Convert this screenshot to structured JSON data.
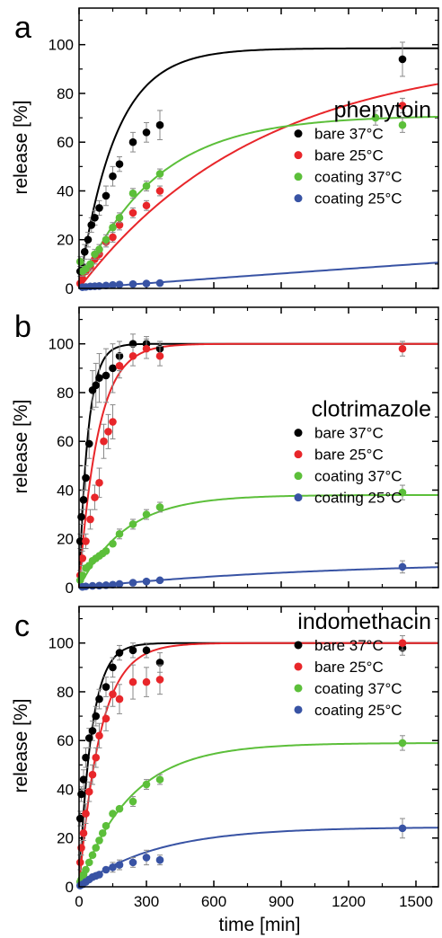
{
  "colors": {
    "bare_37": "#000000",
    "bare_25": "#e8262a",
    "coating_37": "#5cbf3a",
    "coating_25": "#3853a4",
    "errorbar": "#8a8a8a"
  },
  "shared_axes": {
    "xlabel": "time [min]",
    "ylabel": "release [%]",
    "xlim": [
      0,
      1600
    ],
    "ylim": [
      0,
      115
    ],
    "xticks": [
      0,
      300,
      600,
      900,
      1200,
      1500
    ],
    "yticks": [
      0,
      20,
      40,
      60,
      80,
      100
    ]
  },
  "chart_data": [
    {
      "type": "scatter",
      "panel_label": "a",
      "drug": "phenytoin",
      "legend_position": "right-middle",
      "series": [
        {
          "name": "bare 37°C",
          "key": "bare_37",
          "x": [
            5,
            15,
            25,
            40,
            55,
            70,
            90,
            120,
            150,
            180,
            240,
            300,
            360,
            1440
          ],
          "y": [
            7,
            9,
            15,
            20,
            26,
            29,
            33,
            38,
            46,
            51,
            60,
            64,
            67,
            94
          ],
          "err": [
            2,
            2,
            3,
            3,
            3,
            3,
            3,
            4,
            4,
            3,
            4,
            4,
            6,
            7
          ],
          "fit": {
            "plateau": 98.5,
            "k": 0.0062
          }
        },
        {
          "name": "bare 25°C",
          "key": "bare_25",
          "x": [
            5,
            15,
            30,
            50,
            70,
            90,
            120,
            150,
            180,
            240,
            300,
            360,
            1440
          ],
          "y": [
            2,
            4,
            7,
            9,
            12,
            14,
            19,
            21,
            26,
            31,
            34,
            40,
            75
          ],
          "err": [
            1,
            1,
            1,
            2,
            2,
            2,
            2,
            2,
            2,
            2,
            2,
            2,
            3
          ],
          "fit": {
            "plateau": 97.0,
            "k": 0.00125
          }
        },
        {
          "name": "coating 37°C",
          "key": "coating_37",
          "x": [
            5,
            15,
            30,
            50,
            70,
            90,
            120,
            150,
            180,
            240,
            300,
            360,
            1320,
            1440
          ],
          "y": [
            11,
            7,
            8,
            10,
            14,
            16,
            20,
            25,
            29,
            39,
            42,
            47,
            70,
            67
          ],
          "err": [
            2,
            2,
            2,
            2,
            2,
            2,
            2,
            2,
            2,
            2,
            2,
            2,
            3,
            3
          ],
          "fit": {
            "plateau": 71.0,
            "k": 0.003
          }
        },
        {
          "name": "coating 25°C",
          "key": "coating_25",
          "x": [
            15,
            30,
            50,
            70,
            90,
            120,
            150,
            180,
            240,
            300,
            360
          ],
          "y": [
            0.5,
            0.6,
            0.8,
            0.9,
            1.0,
            1.2,
            1.4,
            1.6,
            1.8,
            2.0,
            2.2
          ],
          "err": [
            0.3,
            0.3,
            0.3,
            0.3,
            0.3,
            0.3,
            0.3,
            0.3,
            0.3,
            0.3,
            0.3
          ],
          "fit": {
            "plateau": 100.0,
            "k": 7e-05
          }
        }
      ]
    },
    {
      "type": "scatter",
      "panel_label": "b",
      "drug": "clotrimazole",
      "legend_position": "right-middle",
      "series": [
        {
          "name": "bare 37°C",
          "key": "bare_37",
          "x": [
            5,
            10,
            20,
            30,
            45,
            60,
            75,
            90,
            120,
            150,
            180,
            240,
            300,
            360
          ],
          "y": [
            19,
            29,
            36,
            45,
            59,
            81,
            83,
            86,
            87,
            90,
            95,
            100,
            100,
            98
          ],
          "err": [
            3,
            3,
            4,
            5,
            6,
            8,
            9,
            10,
            11,
            10,
            6,
            4,
            3,
            3
          ],
          "fit": {
            "plateau": 100.0,
            "k": 0.025
          }
        },
        {
          "name": "bare 25°C",
          "key": "bare_25",
          "x": [
            5,
            15,
            30,
            50,
            70,
            90,
            110,
            130,
            150,
            180,
            240,
            300,
            360,
            1440
          ],
          "y": [
            5,
            12,
            19,
            28,
            37,
            43,
            60,
            64,
            68,
            91,
            95,
            98,
            95,
            98
          ],
          "err": [
            2,
            3,
            3,
            4,
            5,
            6,
            7,
            7,
            7,
            5,
            4,
            4,
            4,
            3
          ],
          "fit": {
            "plateau": 100.0,
            "k": 0.0118
          }
        },
        {
          "name": "coating 37°C",
          "key": "coating_37",
          "x": [
            5,
            15,
            30,
            45,
            60,
            75,
            90,
            105,
            120,
            150,
            180,
            240,
            300,
            360,
            1440
          ],
          "y": [
            3,
            5,
            8,
            9,
            11,
            12,
            13,
            14,
            15,
            18,
            22,
            26,
            30,
            33,
            39
          ],
          "err": [
            1,
            1,
            1,
            1,
            1,
            1,
            1,
            1,
            1,
            1,
            2,
            2,
            2,
            2,
            3
          ],
          "fit": {
            "plateau": 38.0,
            "k": 0.0048
          }
        },
        {
          "name": "coating 25°C",
          "key": "coating_25",
          "x": [
            15,
            30,
            60,
            90,
            120,
            150,
            180,
            240,
            300,
            360,
            1440
          ],
          "y": [
            0.3,
            0.5,
            0.7,
            0.8,
            1.0,
            1.2,
            1.5,
            2.0,
            2.5,
            3.0,
            8.5
          ],
          "err": [
            0.3,
            0.3,
            0.3,
            0.3,
            0.3,
            0.3,
            0.3,
            0.4,
            0.5,
            0.6,
            2.5
          ],
          "fit": {
            "plateau": 11.0,
            "k": 0.0009
          }
        }
      ]
    },
    {
      "type": "scatter",
      "panel_label": "c",
      "drug": "indomethacin",
      "legend_position": "top-right",
      "series": [
        {
          "name": "bare 37°C",
          "key": "bare_37",
          "x": [
            5,
            10,
            20,
            30,
            45,
            60,
            75,
            90,
            120,
            150,
            180,
            240,
            300,
            360,
            1440
          ],
          "y": [
            28,
            38,
            44,
            53,
            61,
            64,
            70,
            77,
            82,
            90,
            96,
            97,
            97,
            92,
            98
          ],
          "err": [
            3,
            3,
            4,
            4,
            4,
            4,
            4,
            4,
            4,
            4,
            3,
            3,
            3,
            4,
            3
          ],
          "fit": {
            "plateau": 100.0,
            "k": 0.018
          }
        },
        {
          "name": "bare 25°C",
          "key": "bare_25",
          "x": [
            5,
            10,
            20,
            30,
            45,
            60,
            75,
            90,
            120,
            150,
            180,
            240,
            300,
            360,
            1440
          ],
          "y": [
            10,
            16,
            22,
            30,
            39,
            46,
            53,
            62,
            69,
            79,
            77,
            84,
            84,
            85,
            100
          ],
          "err": [
            3,
            3,
            3,
            4,
            4,
            4,
            4,
            5,
            5,
            5,
            6,
            7,
            6,
            6,
            3
          ],
          "fit": {
            "plateau": 100.0,
            "k": 0.0105
          }
        },
        {
          "name": "coating 37°C",
          "key": "coating_37",
          "x": [
            5,
            10,
            20,
            30,
            45,
            60,
            75,
            90,
            105,
            120,
            150,
            180,
            240,
            300,
            360,
            1440
          ],
          "y": [
            2,
            3,
            5,
            7,
            10,
            13,
            16,
            19,
            22,
            25,
            30,
            32,
            35,
            42,
            44,
            59
          ],
          "err": [
            1,
            1,
            1,
            1,
            1,
            1,
            1,
            1,
            1,
            1,
            1,
            1,
            2,
            2,
            2,
            3
          ],
          "fit": {
            "plateau": 59.0,
            "k": 0.0043
          }
        },
        {
          "name": "coating 25°C",
          "key": "coating_25",
          "x": [
            5,
            15,
            30,
            45,
            60,
            75,
            90,
            120,
            150,
            180,
            240,
            300,
            360,
            1440
          ],
          "y": [
            0.5,
            1,
            2,
            3,
            4,
            4.5,
            5,
            7,
            8,
            9,
            10,
            12,
            11,
            24
          ],
          "err": [
            0.5,
            0.5,
            0.5,
            1,
            1,
            1,
            1,
            1,
            2,
            2,
            2,
            3,
            2,
            4
          ],
          "fit": {
            "plateau": 24.5,
            "k": 0.0029
          }
        }
      ]
    }
  ]
}
